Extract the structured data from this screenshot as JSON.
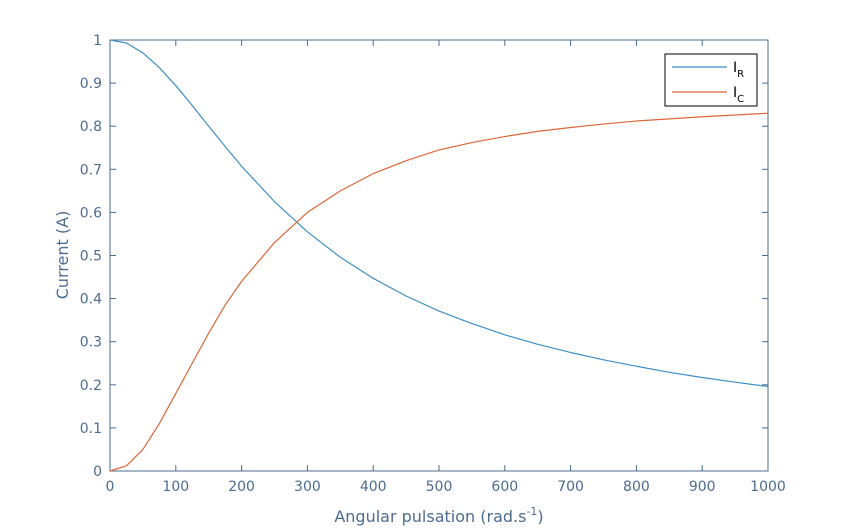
{
  "colors": {
    "axis": "#4d6c8f",
    "series_ir": "#3f8fc7",
    "series_ic": "#d9683a"
  },
  "chart_data": {
    "type": "line",
    "xlabel": "Angular pulsation (rad.s",
    "xlabel_superscript": "-1",
    "xlabel_suffix": ")",
    "ylabel": "Current (A)",
    "xlim": [
      0,
      1000
    ],
    "ylim": [
      0,
      1
    ],
    "x_ticks": [
      "0",
      "100",
      "200",
      "300",
      "400",
      "500",
      "600",
      "700",
      "800",
      "900",
      "1000"
    ],
    "y_ticks": [
      "0",
      "0.1",
      "0.2",
      "0.3",
      "0.4",
      "0.5",
      "0.6",
      "0.7",
      "0.8",
      "0.9",
      "1"
    ],
    "grid": false,
    "legend_position": "top-right",
    "series": [
      {
        "name": "I",
        "subscript": "R",
        "color": "#3f8fc7",
        "x": [
          0,
          25,
          50,
          75,
          100,
          125,
          150,
          175,
          200,
          250,
          300,
          350,
          400,
          450,
          500,
          550,
          600,
          650,
          700,
          750,
          800,
          850,
          900,
          950,
          1000
        ],
        "y": [
          1.0,
          0.993,
          0.97,
          0.936,
          0.894,
          0.848,
          0.8,
          0.753,
          0.707,
          0.625,
          0.555,
          0.496,
          0.447,
          0.406,
          0.371,
          0.342,
          0.316,
          0.294,
          0.275,
          0.258,
          0.243,
          0.229,
          0.217,
          0.206,
          0.196
        ]
      },
      {
        "name": "I",
        "subscript": "C",
        "color": "#d9683a",
        "x": [
          0,
          25,
          50,
          75,
          100,
          125,
          150,
          175,
          200,
          250,
          300,
          350,
          400,
          450,
          500,
          550,
          600,
          650,
          700,
          750,
          800,
          850,
          900,
          950,
          1000
        ],
        "y": [
          0.0,
          0.012,
          0.05,
          0.11,
          0.18,
          0.25,
          0.32,
          0.385,
          0.44,
          0.53,
          0.6,
          0.65,
          0.69,
          0.72,
          0.745,
          0.762,
          0.776,
          0.788,
          0.797,
          0.805,
          0.812,
          0.817,
          0.822,
          0.826,
          0.83
        ]
      }
    ]
  }
}
